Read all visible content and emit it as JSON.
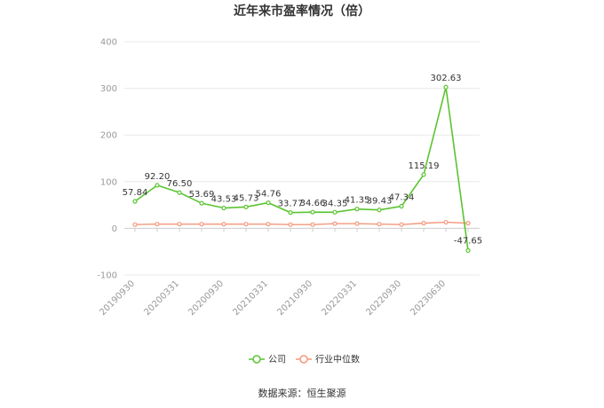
{
  "title": "近年来市盈率情况（倍）",
  "source": "数据来源：恒生聚源",
  "chart_data": {
    "type": "line",
    "title": "近年来市盈率情况（倍）",
    "xlabel": "",
    "ylabel": "",
    "ylim": [
      -100,
      400
    ],
    "yticks": [
      -100,
      0,
      100,
      200,
      300,
      400
    ],
    "x": [
      "20190930",
      "20191231",
      "20200331",
      "20200630",
      "20200930",
      "20201231",
      "20210331",
      "20210630",
      "20210930",
      "20211231",
      "20220331",
      "20220630",
      "20220930",
      "20221231",
      "20230630",
      "20230930"
    ],
    "x_tick_labels": [
      "20190930",
      "20200331",
      "20200930",
      "20210331",
      "20210930",
      "20220331",
      "20220930",
      "20230630"
    ],
    "grid": true,
    "legend_position": "bottom-center",
    "series": [
      {
        "name": "公司",
        "color": "#5ac431",
        "values": [
          57.84,
          92.2,
          76.5,
          53.69,
          43.53,
          45.73,
          54.76,
          33.77,
          34.66,
          34.35,
          41.35,
          39.43,
          47.34,
          115.19,
          302.63,
          -47.65
        ],
        "labels": [
          "57.84",
          "92.20",
          "76.50",
          "53.69",
          "43.53",
          "45.73",
          "54.76",
          "33.77",
          "34.66",
          "34.35",
          "41.35",
          "39.43",
          "47.34",
          "115.19",
          "302.63",
          "-47.65"
        ]
      },
      {
        "name": "行业中位数",
        "color": "#f4977a",
        "values": [
          8,
          9,
          9,
          9,
          9,
          9,
          9,
          8,
          8,
          10,
          10,
          9,
          8,
          11,
          13,
          11
        ]
      }
    ]
  }
}
